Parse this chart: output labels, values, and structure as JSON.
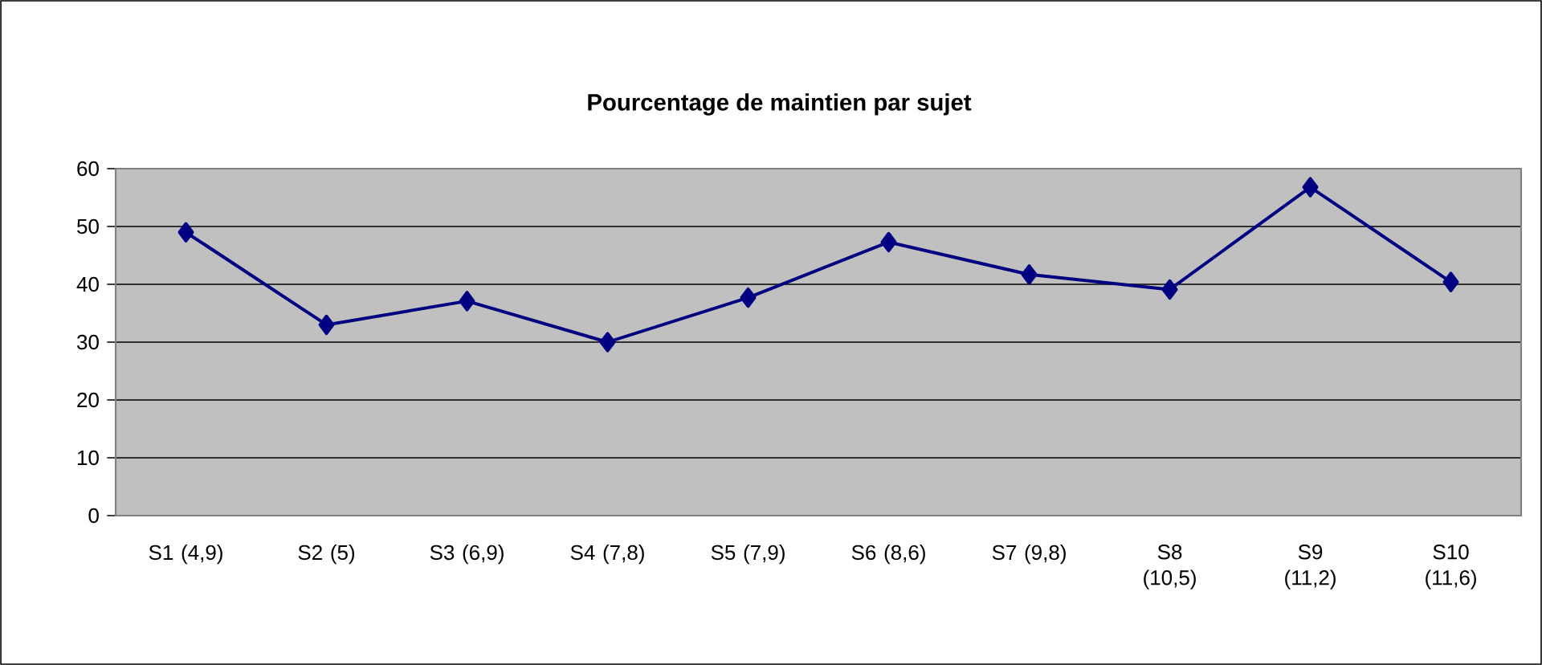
{
  "chart_data": {
    "type": "line",
    "title": "Pourcentage de maintien par sujet",
    "categories": [
      "S1 (4,9)",
      "S2 (5)",
      "S3 (6,9)",
      "S4 (7,8)",
      "S5 (7,9)",
      "S6 (8,6)",
      "S7 (9,8)",
      "S8 (10,5)",
      "S9 (11,2)",
      "S10 (11,6)"
    ],
    "series": [
      {
        "color": "#000080",
        "values": [
          49,
          33,
          37.1,
          30,
          37.7,
          47.3,
          41.7,
          39.1,
          56.8,
          40.4
        ]
      }
    ],
    "marker": "diamond",
    "line_style": "solid",
    "ylim": [
      0,
      60
    ],
    "yticks": [
      0,
      10,
      20,
      30,
      40,
      50,
      60
    ],
    "grid": "y"
  }
}
